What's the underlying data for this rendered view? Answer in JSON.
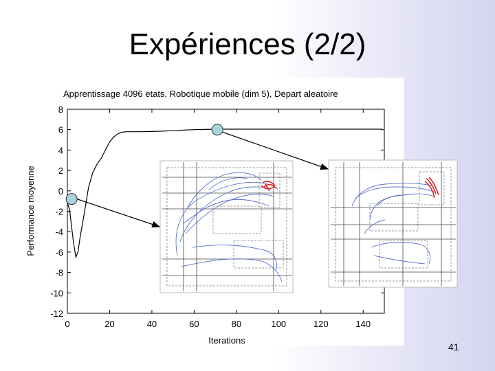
{
  "slide": {
    "title": "Expériences (2/2)",
    "page_number": "41"
  },
  "chart_data": {
    "type": "line",
    "title": "Apprentissage 4096 etats, Robotique mobile (dim 5), Depart aleatoire",
    "xlabel": "Iterations",
    "ylabel": "Performance moyenne",
    "xlim": [
      0,
      150
    ],
    "ylim": [
      -12,
      8
    ],
    "xticks": [
      0,
      20,
      40,
      60,
      80,
      100,
      120,
      140
    ],
    "yticks": [
      8,
      6,
      4,
      2,
      0,
      -2,
      -4,
      -6,
      -8,
      -10,
      -12
    ],
    "grid": false,
    "x": [
      0,
      1,
      2,
      3,
      4,
      5,
      6,
      8,
      10,
      12,
      14,
      16,
      18,
      20,
      22,
      24,
      26,
      28,
      30,
      35,
      40,
      45,
      50,
      55,
      60,
      65,
      70,
      80,
      90,
      100,
      110,
      120,
      130,
      140,
      149
    ],
    "y": [
      -1.2,
      -1.8,
      -3.5,
      -5.2,
      -6.5,
      -6.0,
      -4.6,
      -2.2,
      0.3,
      1.8,
      2.6,
      3.2,
      4.0,
      4.8,
      5.3,
      5.6,
      5.75,
      5.8,
      5.8,
      5.8,
      5.82,
      5.85,
      5.9,
      5.95,
      6.0,
      6.02,
      6.05,
      6.05,
      6.05,
      6.05,
      6.05,
      6.05,
      6.05,
      6.05,
      6.05
    ],
    "highlight_points": [
      {
        "x": 2,
        "y": -0.8
      },
      {
        "x": 71,
        "y": 6.0
      }
    ]
  }
}
